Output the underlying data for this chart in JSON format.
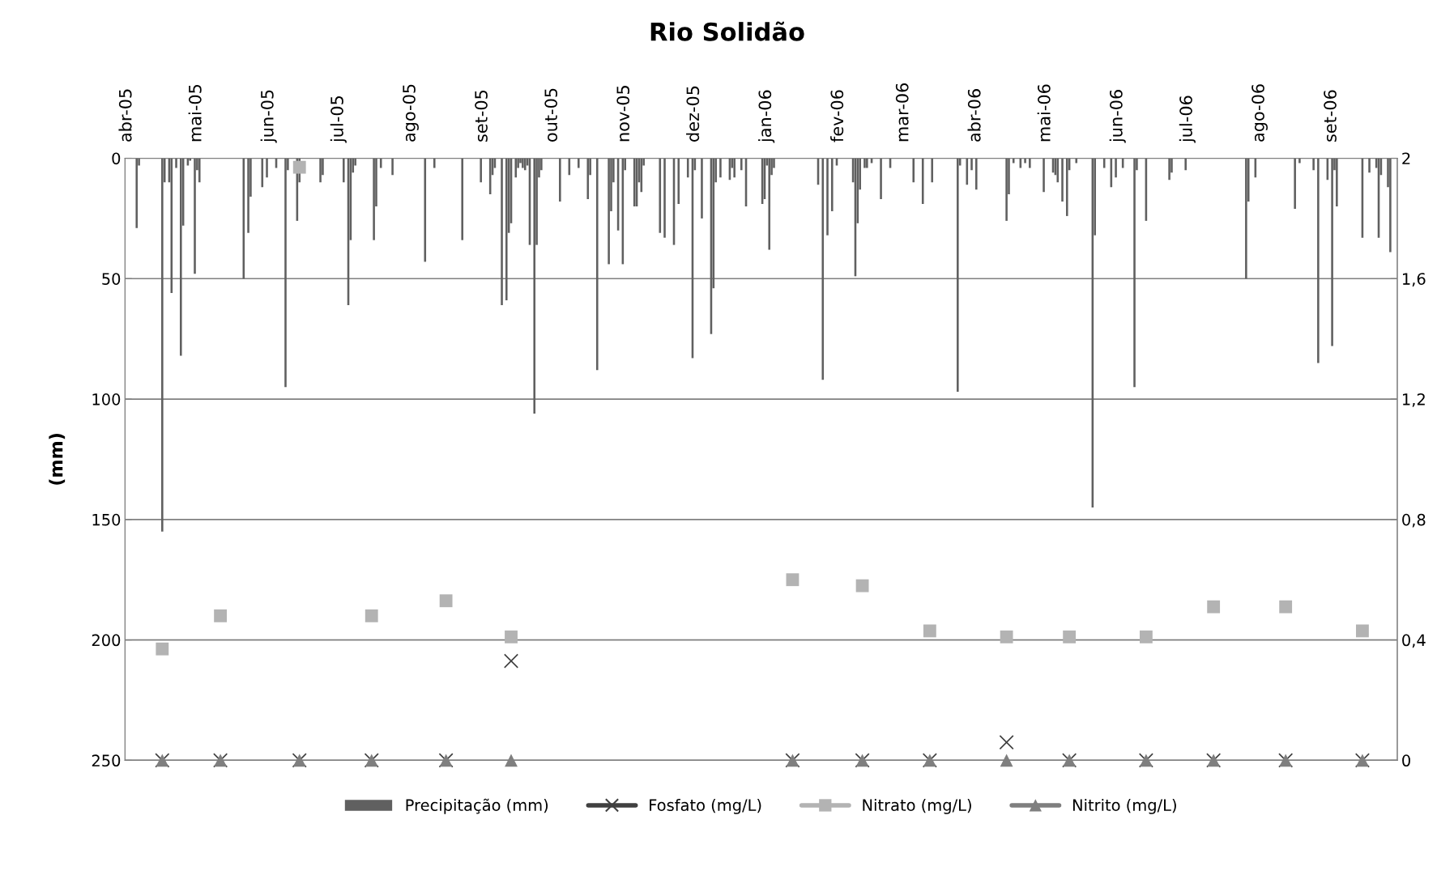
{
  "chart_data": {
    "type": "bar",
    "title": "Rio Solidão",
    "ylabel": "(mm)",
    "xlim": [
      "2005-04-01",
      "2006-09-30"
    ],
    "xticks": [
      {
        "value": "2005-04-01",
        "label": "abr-05"
      },
      {
        "value": "2005-05-01",
        "label": "mai-05"
      },
      {
        "value": "2005-06-01",
        "label": "jun-05"
      },
      {
        "value": "2005-07-01",
        "label": "jul-05"
      },
      {
        "value": "2005-08-01",
        "label": "ago-05"
      },
      {
        "value": "2005-09-01",
        "label": "set-05"
      },
      {
        "value": "2005-10-01",
        "label": "out-05"
      },
      {
        "value": "2005-11-01",
        "label": "nov-05"
      },
      {
        "value": "2005-12-01",
        "label": "dez-05"
      },
      {
        "value": "2006-01-01",
        "label": "jan-06"
      },
      {
        "value": "2006-02-01",
        "label": "fev-06"
      },
      {
        "value": "2006-03-01",
        "label": "mar-06"
      },
      {
        "value": "2006-04-01",
        "label": "abr-06"
      },
      {
        "value": "2006-05-01",
        "label": "mai-06"
      },
      {
        "value": "2006-06-01",
        "label": "jun-06"
      },
      {
        "value": "2006-07-01",
        "label": "jul-06"
      },
      {
        "value": "2006-08-01",
        "label": "ago-06"
      },
      {
        "value": "2006-09-01",
        "label": "set-06"
      }
    ],
    "ylim": [
      250,
      0
    ],
    "yticks": [
      0,
      50,
      100,
      150,
      200,
      250
    ],
    "y2lim": [
      0,
      2
    ],
    "y2ticks": [
      0,
      {
        "value": 0.4,
        "label": "0,4"
      },
      {
        "value": 0.8,
        "label": "0,8"
      },
      {
        "value": 1.2,
        "label": "1,2"
      },
      {
        "value": 1.6,
        "label": "1,6"
      },
      2
    ],
    "grid": "y",
    "legend": "bottom",
    "series": [
      {
        "name": "Precipitação (mm)",
        "axis": "y",
        "color": "#606060",
        "x": [
          "2005-04-06",
          "2005-04-07",
          "2005-04-17",
          "2005-04-18",
          "2005-04-20",
          "2005-04-21",
          "2005-04-23",
          "2005-04-25",
          "2005-04-26",
          "2005-04-28",
          "2005-04-29",
          "2005-05-01",
          "2005-05-02",
          "2005-05-03",
          "2005-05-22",
          "2005-05-24",
          "2005-05-25",
          "2005-05-30",
          "2005-06-01",
          "2005-06-05",
          "2005-06-09",
          "2005-06-10",
          "2005-06-14",
          "2005-06-15",
          "2005-06-24",
          "2005-06-25",
          "2005-07-04",
          "2005-07-06",
          "2005-07-07",
          "2005-07-08",
          "2005-07-09",
          "2005-07-17",
          "2005-07-18",
          "2005-07-20",
          "2005-07-25",
          "2005-08-08",
          "2005-08-12",
          "2005-08-24",
          "2005-09-01",
          "2005-09-05",
          "2005-09-06",
          "2005-09-07",
          "2005-09-10",
          "2005-09-12",
          "2005-09-13",
          "2005-09-14",
          "2005-09-16",
          "2005-09-17",
          "2005-09-18",
          "2005-09-19",
          "2005-09-20",
          "2005-09-21",
          "2005-09-22",
          "2005-09-24",
          "2005-09-25",
          "2005-09-26",
          "2005-09-27",
          "2005-10-05",
          "2005-10-09",
          "2005-10-13",
          "2005-10-17",
          "2005-10-18",
          "2005-10-21",
          "2005-10-26",
          "2005-10-27",
          "2005-10-28",
          "2005-10-30",
          "2005-11-01",
          "2005-11-02",
          "2005-11-06",
          "2005-11-07",
          "2005-11-08",
          "2005-11-09",
          "2005-11-10",
          "2005-11-17",
          "2005-11-19",
          "2005-11-23",
          "2005-11-25",
          "2005-11-29",
          "2005-12-01",
          "2005-12-02",
          "2005-12-05",
          "2005-12-09",
          "2005-12-10",
          "2005-12-11",
          "2005-12-13",
          "2005-12-17",
          "2005-12-18",
          "2005-12-19",
          "2005-12-22",
          "2005-12-24",
          "2005-12-31",
          "2006-01-01",
          "2006-01-02",
          "2006-01-03",
          "2006-01-04",
          "2006-01-05",
          "2006-01-24",
          "2006-01-26",
          "2006-01-28",
          "2006-01-30",
          "2006-02-01",
          "2006-02-08",
          "2006-02-09",
          "2006-02-10",
          "2006-02-11",
          "2006-02-13",
          "2006-02-14",
          "2006-02-16",
          "2006-02-20",
          "2006-02-24",
          "2006-03-06",
          "2006-03-10",
          "2006-03-14",
          "2006-03-25",
          "2006-03-26",
          "2006-03-29",
          "2006-03-31",
          "2006-04-02",
          "2006-04-15",
          "2006-04-16",
          "2006-04-18",
          "2006-04-21",
          "2006-04-23",
          "2006-04-25",
          "2006-05-01",
          "2006-05-05",
          "2006-05-06",
          "2006-05-07",
          "2006-05-09",
          "2006-05-11",
          "2006-05-12",
          "2006-05-15",
          "2006-05-22",
          "2006-05-23",
          "2006-05-27",
          "2006-05-30",
          "2006-06-01",
          "2006-06-04",
          "2006-06-09",
          "2006-06-10",
          "2006-06-14",
          "2006-06-24",
          "2006-06-25",
          "2006-07-01",
          "2006-07-27",
          "2006-07-28",
          "2006-07-31",
          "2006-08-17",
          "2006-08-19",
          "2006-08-25",
          "2006-08-27",
          "2006-08-31",
          "2006-09-02",
          "2006-09-03",
          "2006-09-04",
          "2006-09-15",
          "2006-09-18",
          "2006-09-21",
          "2006-09-22",
          "2006-09-23",
          "2006-09-26",
          "2006-09-27"
        ],
        "values": [
          29,
          3,
          155,
          10,
          10,
          56,
          4,
          82,
          28,
          3,
          1,
          48,
          5,
          10,
          50,
          31,
          16,
          12,
          8,
          4,
          95,
          5,
          26,
          10,
          10,
          7,
          10,
          61,
          34,
          6,
          3,
          34,
          20,
          4,
          7,
          43,
          4,
          34,
          10,
          15,
          7,
          4,
          61,
          59,
          31,
          27,
          8,
          4,
          2,
          4,
          5,
          3,
          36,
          106,
          36,
          8,
          5,
          18,
          7,
          4,
          17,
          7,
          88,
          44,
          22,
          10,
          30,
          44,
          5,
          20,
          20,
          10,
          14,
          3,
          31,
          33,
          36,
          19,
          8,
          83,
          5,
          25,
          73,
          54,
          10,
          8,
          9,
          4,
          8,
          5,
          20,
          19,
          17,
          3,
          38,
          7,
          4,
          11,
          92,
          32,
          22,
          3,
          10,
          49,
          27,
          13,
          4,
          4,
          2,
          17,
          4,
          10,
          19,
          10,
          97,
          3,
          11,
          5,
          13,
          26,
          15,
          2,
          4,
          2,
          4,
          14,
          6,
          7,
          10,
          18,
          24,
          5,
          2,
          145,
          32,
          4,
          12,
          8,
          4,
          95,
          5,
          26,
          9,
          6,
          5,
          50,
          18,
          8,
          21,
          2,
          5,
          85,
          9,
          78,
          5,
          20,
          33,
          6,
          4,
          33,
          7,
          12,
          39
        ]
      },
      {
        "name": "Fosfato (mg/L)",
        "type": "scatter",
        "axis": "y2",
        "color": "#404040",
        "marker": "cross",
        "x": [
          "2005-04-17",
          "2005-05-12",
          "2005-06-15",
          "2005-07-16",
          "2005-08-17",
          "2005-09-14",
          "2006-01-13",
          "2006-02-12",
          "2006-03-13",
          "2006-04-15",
          "2006-05-12",
          "2006-06-14",
          "2006-07-13",
          "2006-08-13",
          "2006-09-15"
        ],
        "values": [
          0,
          0,
          0,
          0,
          0,
          0.33,
          0,
          0,
          0,
          0.06,
          0,
          0,
          0,
          0,
          0
        ]
      },
      {
        "name": "Nitrato (mg/L)",
        "type": "scatter",
        "axis": "y2",
        "color": "#b3b3b3",
        "marker": "square",
        "x": [
          "2005-04-17",
          "2005-05-12",
          "2005-06-15",
          "2005-07-16",
          "2005-08-17",
          "2005-09-14",
          "2006-01-13",
          "2006-02-12",
          "2006-03-13",
          "2006-04-15",
          "2006-05-12",
          "2006-06-14",
          "2006-07-13",
          "2006-08-13",
          "2006-09-15"
        ],
        "values": [
          0.37,
          0.48,
          1.97,
          0.48,
          0.53,
          0.41,
          0.6,
          0.58,
          0.43,
          0.41,
          0.41,
          0.41,
          0.51,
          0.51,
          0.43
        ]
      },
      {
        "name": "Nitrito (mg/L)",
        "type": "scatter",
        "axis": "y2",
        "color": "#7f7f7f",
        "marker": "triangle",
        "x": [
          "2005-04-17",
          "2005-05-12",
          "2005-06-15",
          "2005-07-16",
          "2005-08-17",
          "2005-09-14",
          "2006-01-13",
          "2006-02-12",
          "2006-03-13",
          "2006-04-15",
          "2006-05-12",
          "2006-06-14",
          "2006-07-13",
          "2006-08-13",
          "2006-09-15"
        ],
        "values": [
          0,
          0,
          0,
          0,
          0,
          0,
          0,
          0,
          0,
          0,
          0,
          0,
          0,
          0,
          0
        ]
      }
    ]
  }
}
